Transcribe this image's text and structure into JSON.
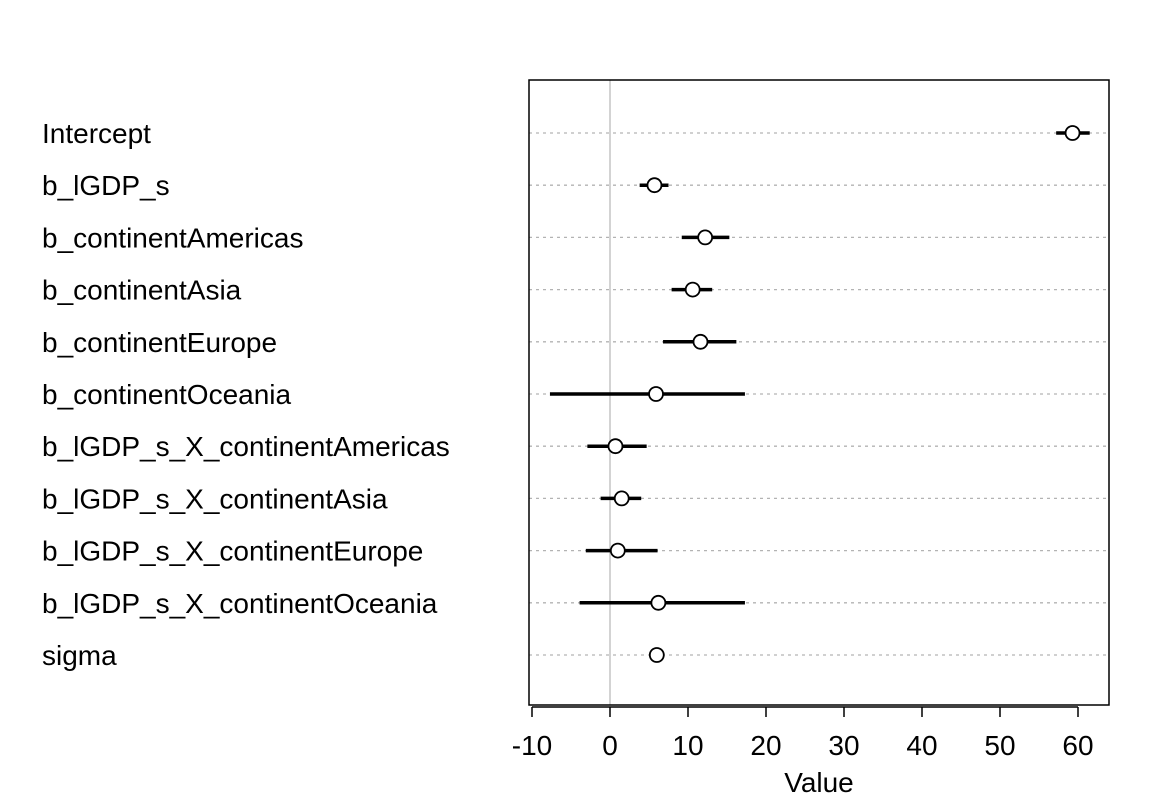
{
  "chart_data": {
    "type": "dot-interval",
    "xlabel": "Value",
    "xlim": [
      -10,
      63
    ],
    "xticks": [
      -10,
      0,
      10,
      20,
      30,
      40,
      50,
      60
    ],
    "xtick_labels": [
      "-10",
      "0",
      "10",
      "20",
      "30",
      "40",
      "50",
      "60"
    ],
    "reference_line": 0,
    "grid": "horizontal dotted",
    "params": [
      {
        "label": "Intercept",
        "estimate": 59.3,
        "lower": 57.2,
        "upper": 61.5
      },
      {
        "label": "b_lGDP_s",
        "estimate": 5.7,
        "lower": 3.8,
        "upper": 7.5
      },
      {
        "label": "b_continentAmericas",
        "estimate": 12.2,
        "lower": 9.2,
        "upper": 15.3
      },
      {
        "label": "b_continentAsia",
        "estimate": 10.6,
        "lower": 7.9,
        "upper": 13.1
      },
      {
        "label": "b_continentEurope",
        "estimate": 11.6,
        "lower": 6.8,
        "upper": 16.2
      },
      {
        "label": "b_continentOceania",
        "estimate": 5.9,
        "lower": -7.7,
        "upper": 17.3
      },
      {
        "label": "b_lGDP_s_X_continentAmericas",
        "estimate": 0.7,
        "lower": -2.9,
        "upper": 4.7
      },
      {
        "label": "b_lGDP_s_X_continentAsia",
        "estimate": 1.5,
        "lower": -1.2,
        "upper": 4.0
      },
      {
        "label": "b_lGDP_s_X_continentEurope",
        "estimate": 1.0,
        "lower": -3.1,
        "upper": 6.1
      },
      {
        "label": "b_lGDP_s_X_continentOceania",
        "estimate": 6.2,
        "lower": -3.9,
        "upper": 17.3
      },
      {
        "label": "sigma",
        "estimate": 6.0,
        "lower": 5.5,
        "upper": 6.6
      }
    ],
    "colors": {
      "marks": "#000000",
      "grid": "#b3b3b3",
      "reference_line": "#d3d3d3"
    }
  }
}
